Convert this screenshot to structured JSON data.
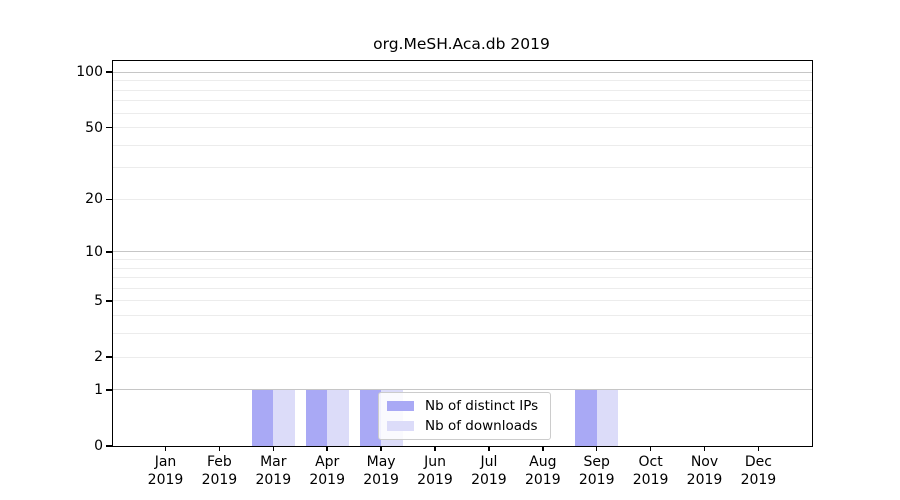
{
  "chart_data": {
    "type": "bar",
    "title": "org.MeSH.Aca.db 2019",
    "categories": [
      "Jan",
      "Feb",
      "Mar",
      "Apr",
      "May",
      "Jun",
      "Jul",
      "Aug",
      "Sep",
      "Oct",
      "Nov",
      "Dec"
    ],
    "x_sublabel": "2019",
    "series": [
      {
        "name": "Nb of distinct IPs",
        "color": "#a9a9f5",
        "values": [
          0,
          0,
          1,
          1,
          1,
          0,
          0,
          0,
          1,
          0,
          0,
          0
        ]
      },
      {
        "name": "Nb of downloads",
        "color": "#dcdcf9",
        "values": [
          0,
          0,
          1,
          1,
          1,
          0,
          0,
          0,
          1,
          0,
          0,
          0
        ]
      }
    ],
    "yscale": "log1p",
    "ylim": [
      0,
      115
    ],
    "yticks": [
      0,
      1,
      2,
      5,
      10,
      20,
      50,
      100
    ],
    "gridlines": {
      "emphasis_values": [
        1,
        10,
        100
      ],
      "light_values": [
        2,
        3,
        4,
        5,
        6,
        7,
        8,
        9,
        20,
        30,
        40,
        50,
        60,
        70,
        80,
        90
      ],
      "emphasis_color": "#c6c6c6",
      "light_color": "#ececec"
    },
    "legend": {
      "position": "inside-bottom-center",
      "background": "rgba(255,255,255,0.84)",
      "border_color": "#cccccc"
    },
    "frame_color": "#000000",
    "grid_on": true
  }
}
